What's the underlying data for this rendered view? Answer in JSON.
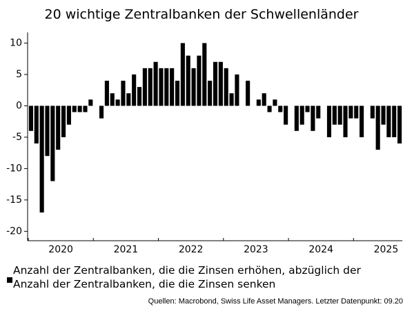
{
  "chart_data": {
    "type": "bar",
    "title": "20 wichtige Zentralbanken der Schwellenländer",
    "categories": [
      null,
      null,
      null,
      null,
      null,
      null,
      "2020",
      null,
      null,
      null,
      null,
      null,
      null,
      null,
      null,
      null,
      null,
      null,
      "2021",
      null,
      null,
      null,
      null,
      null,
      null,
      null,
      null,
      null,
      null,
      null,
      "2022",
      null,
      null,
      null,
      null,
      null,
      null,
      null,
      null,
      null,
      null,
      null,
      "2023",
      null,
      null,
      null,
      null,
      null,
      null,
      null,
      null,
      null,
      null,
      null,
      "2024",
      null,
      null,
      null,
      null,
      null,
      null,
      null,
      null,
      null,
      null,
      null,
      "2025",
      null,
      null
    ],
    "series": [
      {
        "name": "Anzahl der Zentralbanken, die die Zinsen erhöhen, abzüglich der Anzahl der Zentralbanken, die die Zinsen senken",
        "color": "#000000",
        "values": [
          -4,
          -6,
          -17,
          -8,
          -12,
          -7,
          -5,
          -3,
          -1,
          -1,
          -1,
          1,
          0,
          -2,
          4,
          2,
          1,
          4,
          2,
          5,
          3,
          6,
          6,
          7,
          6,
          6,
          6,
          4,
          10,
          8,
          6,
          8,
          10,
          4,
          7,
          7,
          6,
          2,
          5,
          0,
          4,
          0,
          1,
          2,
          -1,
          1,
          -1,
          -3,
          0,
          -4,
          -3,
          -1,
          -4,
          -2,
          0,
          -5,
          -3,
          -3,
          -5,
          -2,
          -2,
          -5,
          0,
          -2,
          -7,
          -3,
          -5,
          -5,
          -6
        ]
      }
    ],
    "ylim": [
      -21.5,
      11.7
    ],
    "yticks": [
      -20,
      -15,
      -10,
      -5,
      0,
      5,
      10
    ],
    "grid": false,
    "source": "Quellen: Macrobond, Swiss Life Asset Managers. Letzter Datenpunkt: 09.20"
  }
}
